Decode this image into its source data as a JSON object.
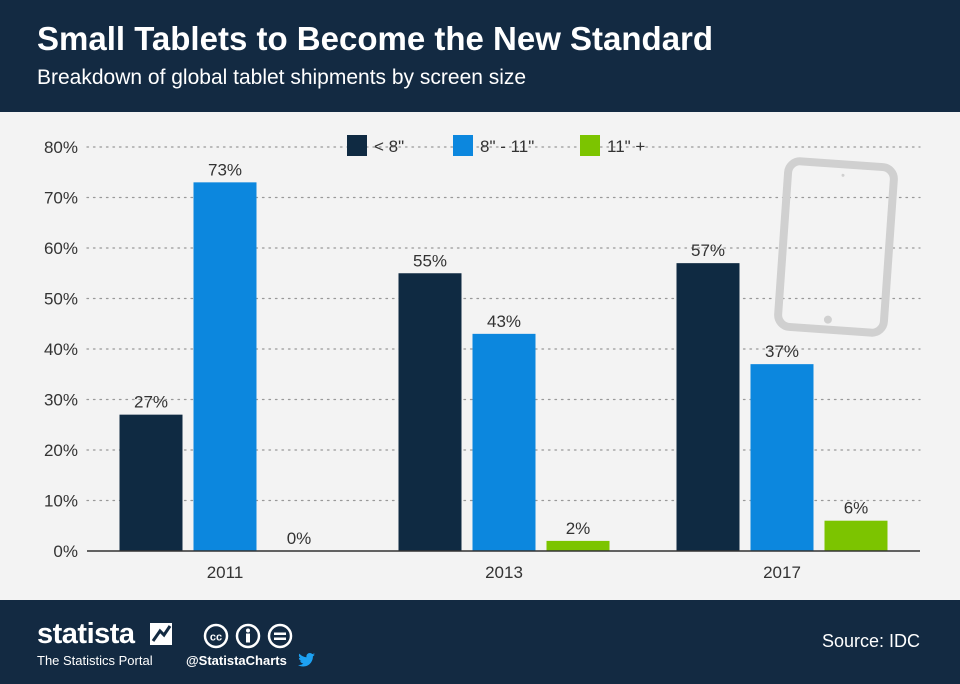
{
  "header": {
    "title": "Small Tablets to Become the New Standard",
    "subtitle": "Breakdown of global tablet shipments by screen size"
  },
  "footer": {
    "brand": "statista",
    "brand_tagline": "The Statistics Portal",
    "social_handle": "@StatistaCharts",
    "source": "Source: IDC",
    "icons": [
      "statista-logo-icon",
      "creative-commons-icon",
      "attribution-icon",
      "no-derivatives-icon",
      "twitter-icon",
      "tablet-icon"
    ]
  },
  "colors": {
    "header_bg": "#132a42",
    "plot_bg": "#f3f3f3",
    "series_small": "#0f2a42",
    "series_medium": "#0c87de",
    "series_large": "#7cc400",
    "tablet_illustration": "#d0d0d0"
  },
  "chart_data": {
    "type": "bar",
    "categories": [
      "2011",
      "2013",
      "2017"
    ],
    "series": [
      {
        "name": "< 8\"",
        "values": [
          27,
          55,
          57
        ],
        "color": "#0f2a42"
      },
      {
        "name": "8\" - 11\"",
        "values": [
          73,
          43,
          37
        ],
        "color": "#0c87de"
      },
      {
        "name": "11\" +",
        "values": [
          0,
          2,
          6
        ],
        "color": "#7cc400"
      }
    ],
    "data_labels": [
      [
        "27%",
        "73%",
        "0%"
      ],
      [
        "55%",
        "43%",
        "2%"
      ],
      [
        "57%",
        "37%",
        "6%"
      ]
    ],
    "y_ticks": [
      "0%",
      "10%",
      "20%",
      "30%",
      "40%",
      "50%",
      "60%",
      "70%",
      "80%"
    ],
    "ylim": [
      0,
      80
    ],
    "grid": true,
    "legend_position": "top"
  }
}
